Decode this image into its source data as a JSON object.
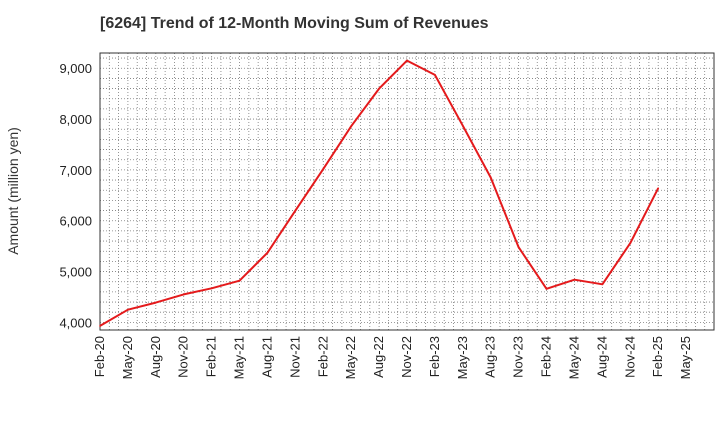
{
  "chart_data": {
    "type": "line",
    "title": "[6264]  Trend of 12-Month Moving Sum of Revenues",
    "xlabel": "",
    "ylabel": "Amount (million yen)",
    "ylim": [
      3850,
      9300
    ],
    "yticks": [
      4000,
      5000,
      6000,
      7000,
      8000,
      9000
    ],
    "ytick_labels": [
      "4,000",
      "5,000",
      "6,000",
      "7,000",
      "8,000",
      "9,000"
    ],
    "xtick_labels": [
      "Feb-20",
      "May-20",
      "Aug-20",
      "Nov-20",
      "Feb-21",
      "May-21",
      "Aug-21",
      "Nov-21",
      "Feb-22",
      "May-22",
      "Aug-22",
      "Nov-22",
      "Feb-23",
      "May-23",
      "Aug-23",
      "Nov-23",
      "Feb-24",
      "May-24",
      "Aug-24",
      "Nov-24",
      "Feb-25",
      "May-25"
    ],
    "grid": true,
    "line_color": "#e41a1c",
    "series": [
      {
        "x": [
          "Feb-20",
          "May-20",
          "Aug-20",
          "Nov-20",
          "Feb-21",
          "May-21",
          "Aug-21",
          "Nov-21",
          "Feb-22",
          "May-22",
          "Aug-22",
          "Nov-22",
          "Feb-23",
          "May-23",
          "Aug-23",
          "Nov-23",
          "Feb-24",
          "May-24",
          "Aug-24",
          "Nov-24",
          "Feb-25"
        ],
        "values": [
          3930,
          4250,
          4390,
          4550,
          4670,
          4820,
          5370,
          6200,
          7020,
          7860,
          8600,
          9150,
          8870,
          7870,
          6850,
          5480,
          4660,
          4840,
          4750,
          5560,
          6640
        ]
      }
    ]
  }
}
